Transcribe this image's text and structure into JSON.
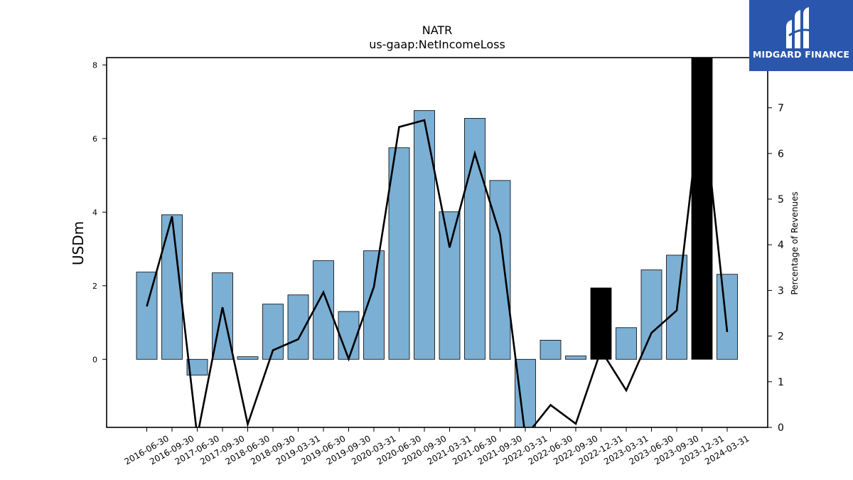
{
  "brand": {
    "name": "MIDGARD FINANCE",
    "bg": "#2b56ad"
  },
  "chart_data": {
    "type": "bar",
    "title": "NATR",
    "subtitle": "us-gaap:NetIncomeLoss",
    "ylabel": "USDm",
    "y2label": "Percentage of Revenues",
    "ylim": [
      -1.85,
      8.2
    ],
    "y2lim": [
      0,
      8.1
    ],
    "yticks": [
      0,
      2,
      4,
      6,
      8
    ],
    "y2ticks": [
      0,
      1,
      2,
      3,
      4,
      5,
      6,
      7
    ],
    "categories": [
      "2016-06-30",
      "2016-09-30",
      "2017-06-30",
      "2017-09-30",
      "2018-06-30",
      "2018-09-30",
      "2019-03-31",
      "2019-06-30",
      "2019-09-30",
      "2020-03-31",
      "2020-06-30",
      "2020-09-30",
      "2021-03-31",
      "2021-06-30",
      "2021-09-30",
      "2022-03-31",
      "2022-06-30",
      "2022-09-30",
      "2022-12-31",
      "2023-03-31",
      "2023-06-30",
      "2023-09-30",
      "2023-12-31",
      "2024-03-31"
    ],
    "series": [
      {
        "type": "bar",
        "values": [
          2.37,
          3.93,
          -0.43,
          2.35,
          0.07,
          1.5,
          1.75,
          2.68,
          1.3,
          2.95,
          5.75,
          6.76,
          4.01,
          6.55,
          4.86,
          -1.9,
          0.52,
          0.09,
          1.94,
          0.86,
          2.43,
          2.83,
          8.5,
          2.31
        ],
        "colors": [
          "#7bafd4",
          "#7bafd4",
          "#7bafd4",
          "#7bafd4",
          "#7bafd4",
          "#7bafd4",
          "#7bafd4",
          "#7bafd4",
          "#7bafd4",
          "#7bafd4",
          "#7bafd4",
          "#7bafd4",
          "#7bafd4",
          "#7bafd4",
          "#7bafd4",
          "#7bafd4",
          "#7bafd4",
          "#7bafd4",
          "#000000",
          "#7bafd4",
          "#7bafd4",
          "#7bafd4",
          "#000000",
          "#7bafd4"
        ]
      },
      {
        "type": "line",
        "axis": "right",
        "color": "#000000",
        "values": [
          2.65,
          4.62,
          -0.2,
          2.63,
          0.07,
          1.69,
          1.93,
          2.96,
          1.5,
          3.08,
          6.58,
          6.73,
          3.94,
          6.0,
          4.22,
          -0.2,
          0.49,
          0.08,
          1.69,
          0.81,
          2.07,
          2.56,
          7.3,
          2.09
        ]
      }
    ],
    "grid": false,
    "legend": "none"
  }
}
